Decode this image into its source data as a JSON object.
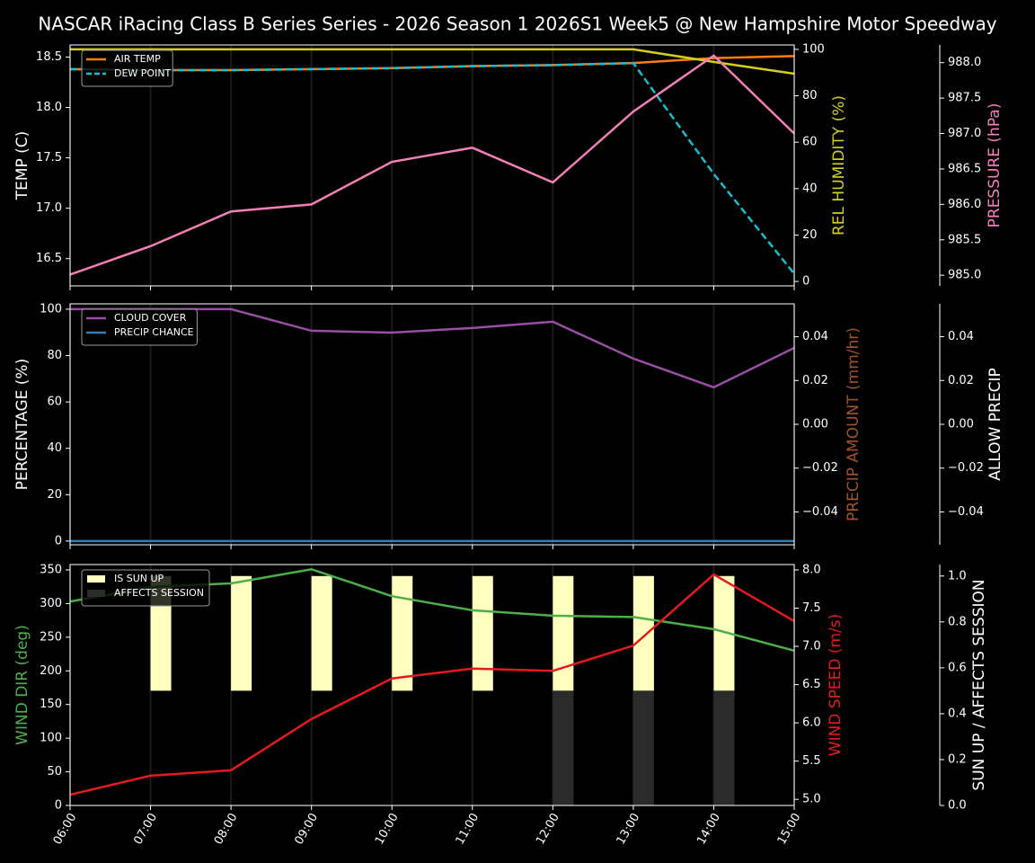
{
  "chart_data": [
    {
      "type": "line",
      "title": "NASCAR iRacing Class B Series Series - 2026 Season 1 2026S1 Week5 @ New Hampshire Motor Speedway",
      "ylabel": "TEMP (C)",
      "ylabel_color": "#ffffff",
      "ylim": [
        16.23,
        18.62
      ],
      "yticks": [
        16.5,
        {
          "value": 17,
          "label": "17.0"
        },
        17.5,
        {
          "value": 18,
          "label": "18.0"
        },
        18.5
      ],
      "y2label": "REL HUMIDITY (%)",
      "y2label_color": "#d4cf1c",
      "y2lim": [
        -1.9,
        101.9
      ],
      "y2ticks": [
        0,
        20,
        40,
        60,
        80,
        100
      ],
      "y3label": "PRESSURE (hPa)",
      "y3label_color": "#f27fb8",
      "y3lim": [
        984.85,
        988.25
      ],
      "y3ticks": [
        {
          "value": 985,
          "label": "985.0"
        },
        985.5,
        {
          "value": 986,
          "label": "986.0"
        },
        986.5,
        {
          "value": 987,
          "label": "987.0"
        },
        987.5,
        {
          "value": 988,
          "label": "988.0"
        }
      ],
      "legend": "upper left",
      "series": [
        {
          "name": "AIR TEMP",
          "color": "#ff7f0e",
          "axis": "y",
          "legend": true,
          "values": [
            18.38,
            18.37,
            18.37,
            18.38,
            18.39,
            18.41,
            18.42,
            18.44,
            18.49,
            18.51
          ]
        },
        {
          "name": "DEW POINT",
          "color": "#17becf",
          "axis": "y",
          "legend": true,
          "dash": true,
          "values": [
            18.38,
            18.37,
            18.37,
            18.38,
            18.39,
            18.41,
            18.42,
            18.44,
            17.34,
            16.35
          ]
        },
        {
          "color": "#d4cf1c",
          "axis": "y2",
          "values": [
            100,
            100,
            100,
            100,
            100,
            100,
            100,
            100,
            94.6,
            89.5
          ]
        },
        {
          "color": "#f27fb8",
          "axis": "y3",
          "values": [
            985.01,
            985.41,
            985.9,
            986.0,
            986.6,
            986.8,
            986.31,
            987.31,
            988.1,
            987.0
          ]
        }
      ]
    },
    {
      "type": "line",
      "ylabel": "PERCENTAGE (%)",
      "ylabel_color": "#ffffff",
      "ylim": [
        -1.6,
        102.3
      ],
      "yticks": [
        0,
        20,
        40,
        60,
        80,
        100
      ],
      "y2label": "PRECIP AMOUNT (mm/hr)",
      "y2label_color": "#a0522d",
      "y2lim": [
        -0.055,
        0.055
      ],
      "y2ticks": [
        {
          "value": -0.04,
          "label": "−0.04"
        },
        {
          "value": -0.02,
          "label": "−0.02"
        },
        {
          "value": 0,
          "label": "0.00"
        },
        0.02,
        0.04
      ],
      "y3label": "ALLOW PRECIP",
      "y3label_color": "#ffffff",
      "y3lim": [
        -0.055,
        0.055
      ],
      "y3ticks": [
        {
          "value": -0.04,
          "label": "−0.04"
        },
        {
          "value": -0.02,
          "label": "−0.02"
        },
        {
          "value": 0,
          "label": "0.00"
        },
        0.02,
        0.04
      ],
      "legend": "upper left",
      "series": [
        {
          "name": "CLOUD COVER",
          "color": "#984ea3",
          "axis": "y",
          "legend": true,
          "values": [
            100,
            100,
            100,
            90.7,
            89.9,
            91.9,
            94.6,
            78.7,
            66.3,
            83.3
          ]
        },
        {
          "name": "PRECIP CHANCE",
          "color": "#377eb8",
          "axis": "y",
          "legend": true,
          "values": [
            0,
            0,
            0,
            0,
            0,
            0,
            0,
            0,
            0,
            0
          ]
        }
      ]
    },
    {
      "type": "line",
      "categories": [
        "06:00",
        "07:00",
        "08:00",
        "09:00",
        "10:00",
        "11:00",
        "12:00",
        "13:00",
        "14:00",
        "15:00"
      ],
      "ylabel": "WIND DIR (deg)",
      "ylabel_color": "#4daf4a",
      "ylim": [
        0,
        358
      ],
      "yticks": [
        0,
        50,
        100,
        150,
        200,
        250,
        300,
        350
      ],
      "y2label": "WIND SPEED (m/s)",
      "y2label_color": "#e41a1c",
      "y2lim": [
        4.92,
        8.07
      ],
      "y2ticks": [
        {
          "value": 5,
          "label": "5.0"
        },
        5.5,
        {
          "value": 6,
          "label": "6.0"
        },
        6.5,
        {
          "value": 7,
          "label": "7.0"
        },
        7.5,
        {
          "value": 8,
          "label": "8.0"
        }
      ],
      "y3label": "SUN UP / AFFECTS SESSION",
      "y3label_color": "#ffffff",
      "y3lim": [
        0,
        1.05
      ],
      "y3ticks": [
        {
          "value": 0,
          "label": "0.0"
        },
        0.2,
        0.4,
        0.6,
        0.8,
        {
          "value": 1,
          "label": "1.0"
        }
      ],
      "legend": "upper left",
      "series": [
        {
          "name": "IS SUN UP",
          "kind": "bar",
          "color": "#ffffc0",
          "axis": "y3",
          "base": 0.5,
          "legend": true,
          "values": [
            0,
            1,
            1,
            1,
            1,
            1,
            1,
            1,
            1,
            0
          ]
        },
        {
          "name": "AFFECTS SESSION",
          "kind": "bar",
          "color": "#2b2b2b",
          "axis": "y3",
          "legend": true,
          "values": [
            0,
            0,
            0,
            0,
            0,
            0,
            0.5,
            0.5,
            0.5,
            0
          ]
        },
        {
          "color": "#4daf4a",
          "axis": "y",
          "values": [
            303,
            324.6,
            330,
            351,
            311,
            290,
            282,
            280,
            262,
            230
          ]
        },
        {
          "color": "#e41a1c",
          "axis": "y2",
          "values": [
            5.06,
            5.31,
            5.38,
            6.05,
            6.58,
            6.71,
            6.68,
            7.01,
            7.94,
            7.33
          ]
        }
      ]
    }
  ]
}
